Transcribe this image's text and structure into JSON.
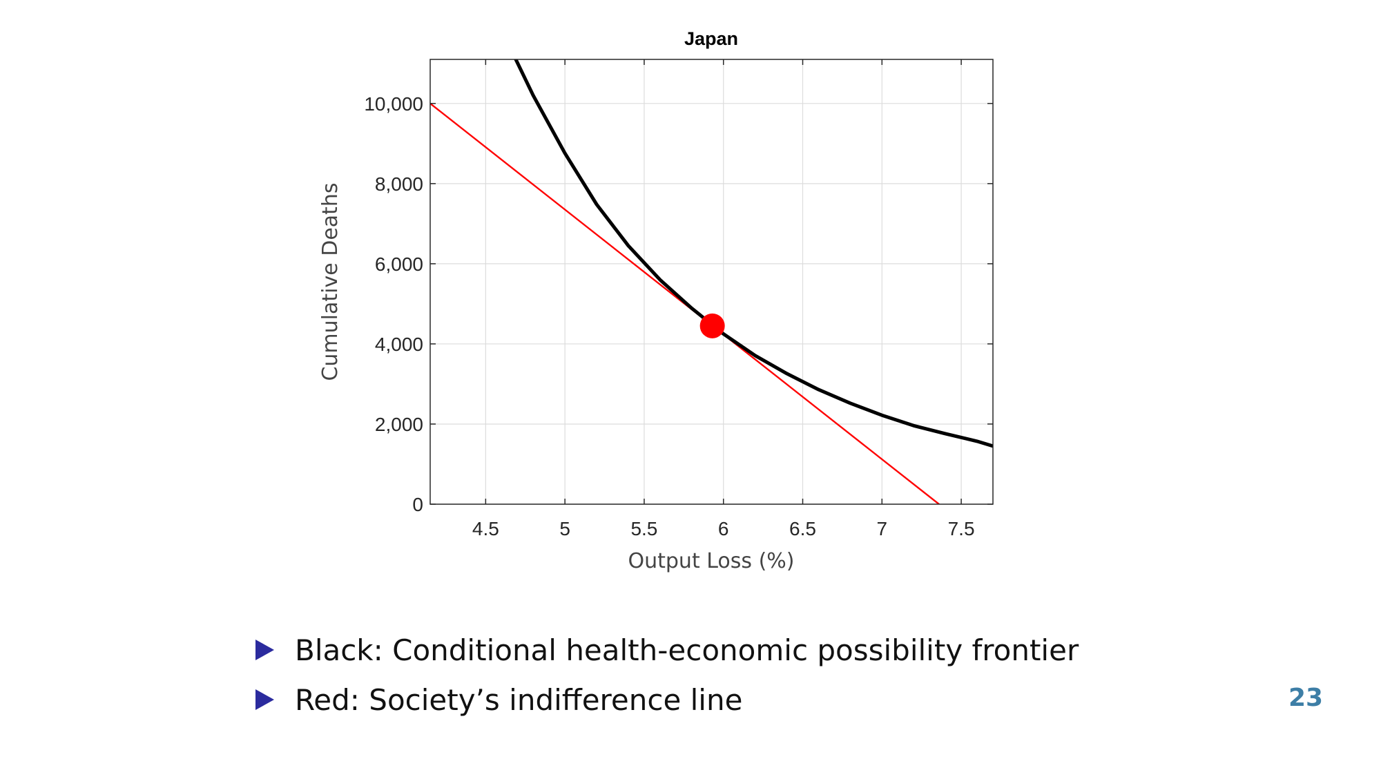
{
  "chart_data": {
    "type": "line",
    "title": "Japan",
    "xlabel": "Output Loss (%)",
    "ylabel": "Cumulative Deaths",
    "xlim": [
      4.15,
      7.7
    ],
    "ylim": [
      0,
      11100
    ],
    "xticks": [
      4.5,
      5,
      5.5,
      6,
      6.5,
      7,
      7.5
    ],
    "xtick_labels": [
      "4.5",
      "5",
      "5.5",
      "6",
      "6.5",
      "7",
      "7.5"
    ],
    "yticks": [
      0,
      2000,
      4000,
      6000,
      8000,
      10000
    ],
    "ytick_labels": [
      "0",
      "2,000",
      "4,000",
      "6,000",
      "8,000",
      "10,000"
    ],
    "grid": true,
    "series": [
      {
        "color": "#000000",
        "x": [
          4.69,
          4.8,
          5.0,
          5.2,
          5.4,
          5.6,
          5.8,
          6.0,
          6.2,
          6.4,
          6.6,
          6.8,
          7.0,
          7.2,
          7.4,
          7.6,
          7.7
        ],
        "y": [
          11100,
          10200,
          8760,
          7480,
          6450,
          5600,
          4890,
          4250,
          3710,
          3260,
          2860,
          2520,
          2220,
          1960,
          1760,
          1570,
          1450
        ]
      },
      {
        "color": "#ff0000",
        "x": [
          4.15,
          7.36
        ],
        "y": [
          10000,
          0
        ]
      }
    ],
    "points": [
      {
        "x": 5.93,
        "y": 4450,
        "color": "#ff0000"
      }
    ]
  },
  "bullets": [
    "Black:  Conditional health-economic possibility frontier",
    "Red:  Society’s indifference line"
  ],
  "page_number": "23",
  "colors": {
    "bullet_marker": "#2b2b9e",
    "page_number": "#3d7ea6"
  }
}
